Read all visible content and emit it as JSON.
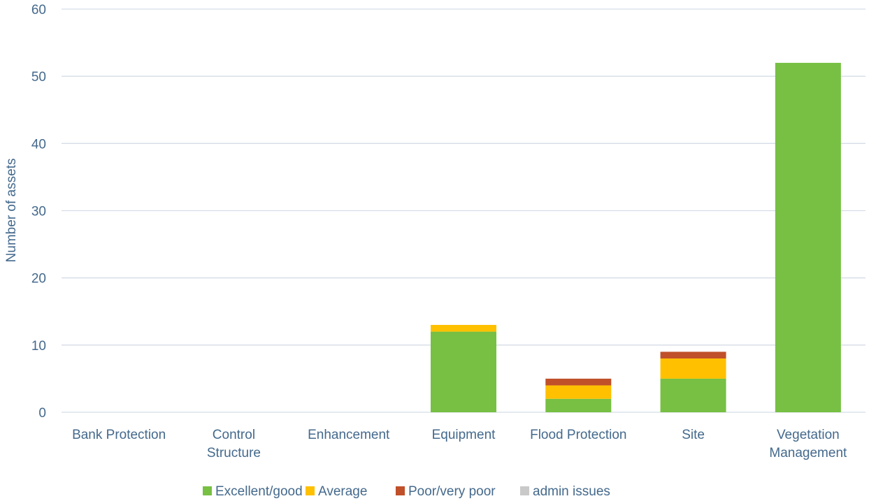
{
  "chart_data": {
    "type": "bar",
    "stacked": true,
    "title": "",
    "xlabel": "",
    "ylabel": "Number of assets",
    "ylim": [
      0,
      60
    ],
    "yticks": [
      0,
      10,
      20,
      30,
      40,
      50,
      60
    ],
    "grid": true,
    "legend": "bottom",
    "categories": [
      [
        "Bank Protection"
      ],
      [
        "Control",
        "Structure"
      ],
      [
        "Enhancement"
      ],
      [
        "Equipment"
      ],
      [
        "Flood Protection"
      ],
      [
        "Site"
      ],
      [
        "Vegetation",
        "Management"
      ]
    ],
    "series": [
      {
        "name": "Excellent/good",
        "color": "#77c043",
        "values": [
          0,
          0,
          0,
          12,
          2,
          5,
          52
        ]
      },
      {
        "name": "Average",
        "color": "#ffc000",
        "values": [
          0,
          0,
          0,
          1,
          2,
          3,
          0
        ]
      },
      {
        "name": "Poor/very poor",
        "color": "#c0502a",
        "values": [
          0,
          0,
          0,
          0,
          1,
          1,
          0
        ]
      },
      {
        "name": "admin issues",
        "color": "#c9c9c9",
        "values": [
          0,
          0,
          0,
          0,
          0,
          0,
          0
        ]
      }
    ],
    "colors": {
      "axis_text": "#44698c",
      "grid": "#d5dde6"
    }
  }
}
